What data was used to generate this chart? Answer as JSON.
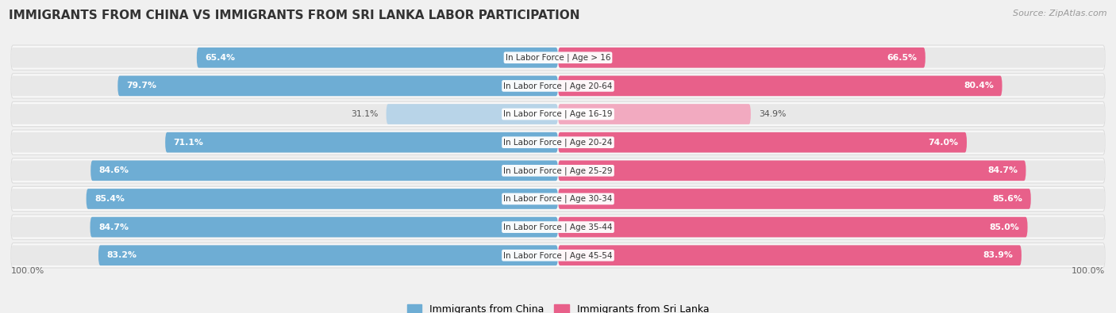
{
  "title": "IMMIGRANTS FROM CHINA VS IMMIGRANTS FROM SRI LANKA LABOR PARTICIPATION",
  "source": "Source: ZipAtlas.com",
  "categories": [
    "In Labor Force | Age > 16",
    "In Labor Force | Age 20-64",
    "In Labor Force | Age 16-19",
    "In Labor Force | Age 20-24",
    "In Labor Force | Age 25-29",
    "In Labor Force | Age 30-34",
    "In Labor Force | Age 35-44",
    "In Labor Force | Age 45-54"
  ],
  "china_values": [
    65.4,
    79.7,
    31.1,
    71.1,
    84.6,
    85.4,
    84.7,
    83.2
  ],
  "srilanka_values": [
    66.5,
    80.4,
    34.9,
    74.0,
    84.7,
    85.6,
    85.0,
    83.9
  ],
  "china_color_full": "#6eadd4",
  "china_color_light": "#b8d4e8",
  "srilanka_color_full": "#e8608a",
  "srilanka_color_light": "#f2aac0",
  "threshold": 60,
  "bg_color": "#f0f0f0",
  "bar_bg_color": "#e8e8e8",
  "row_bg_color": "#f8f8f8",
  "label_color_dark": "#555555",
  "legend_china": "Immigrants from China",
  "legend_srilanka": "Immigrants from Sri Lanka",
  "max_val": 100.0,
  "bottom_label": "100.0%"
}
